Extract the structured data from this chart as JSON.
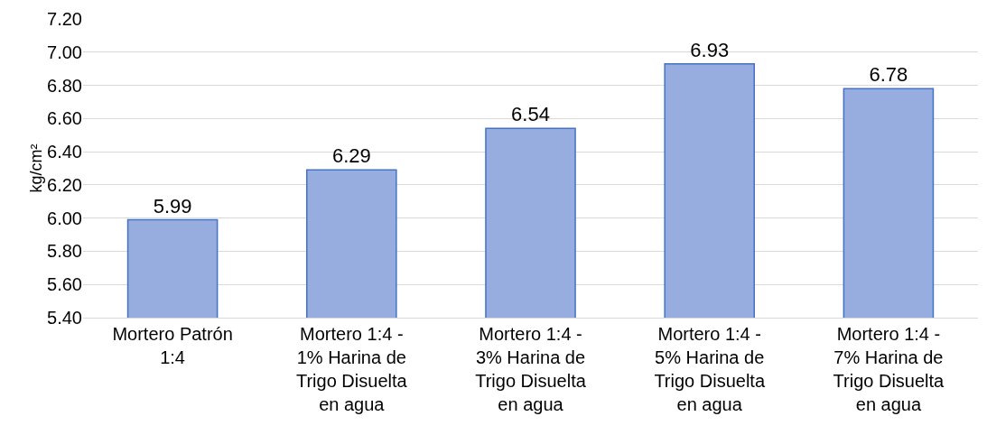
{
  "chart_data": {
    "type": "bar",
    "ylabel": "kg/cm²",
    "categories": [
      "Mortero Patrón 1:4",
      "Mortero 1:4 - 1% Harina de Trigo Disuelta en agua",
      "Mortero 1:4 - 3% Harina de Trigo Disuelta en agua",
      "Mortero 1:4 - 5% Harina de Trigo Disuelta en agua",
      "Mortero 1:4 - 7% Harina de Trigo Disuelta en agua"
    ],
    "values": [
      5.99,
      6.29,
      6.54,
      6.93,
      6.78
    ],
    "color": "#97acdf",
    "ylim": [
      5.4,
      7.2
    ],
    "yticks": [
      {
        "value": 5.4,
        "label": "5.40"
      },
      {
        "value": 5.6,
        "label": "5.60"
      },
      {
        "value": 5.8,
        "label": "5.80"
      },
      {
        "value": 6.0,
        "label": "6.00"
      },
      {
        "value": 6.2,
        "label": "6.20"
      },
      {
        "value": 6.4,
        "label": "6.40"
      },
      {
        "value": 6.6,
        "label": "6.60"
      },
      {
        "value": 6.8,
        "label": "6.80"
      },
      {
        "value": 7.0,
        "label": "7.00"
      },
      {
        "value": 7.2,
        "label": "7.20"
      }
    ],
    "grid": "y",
    "data_labels": true
  }
}
